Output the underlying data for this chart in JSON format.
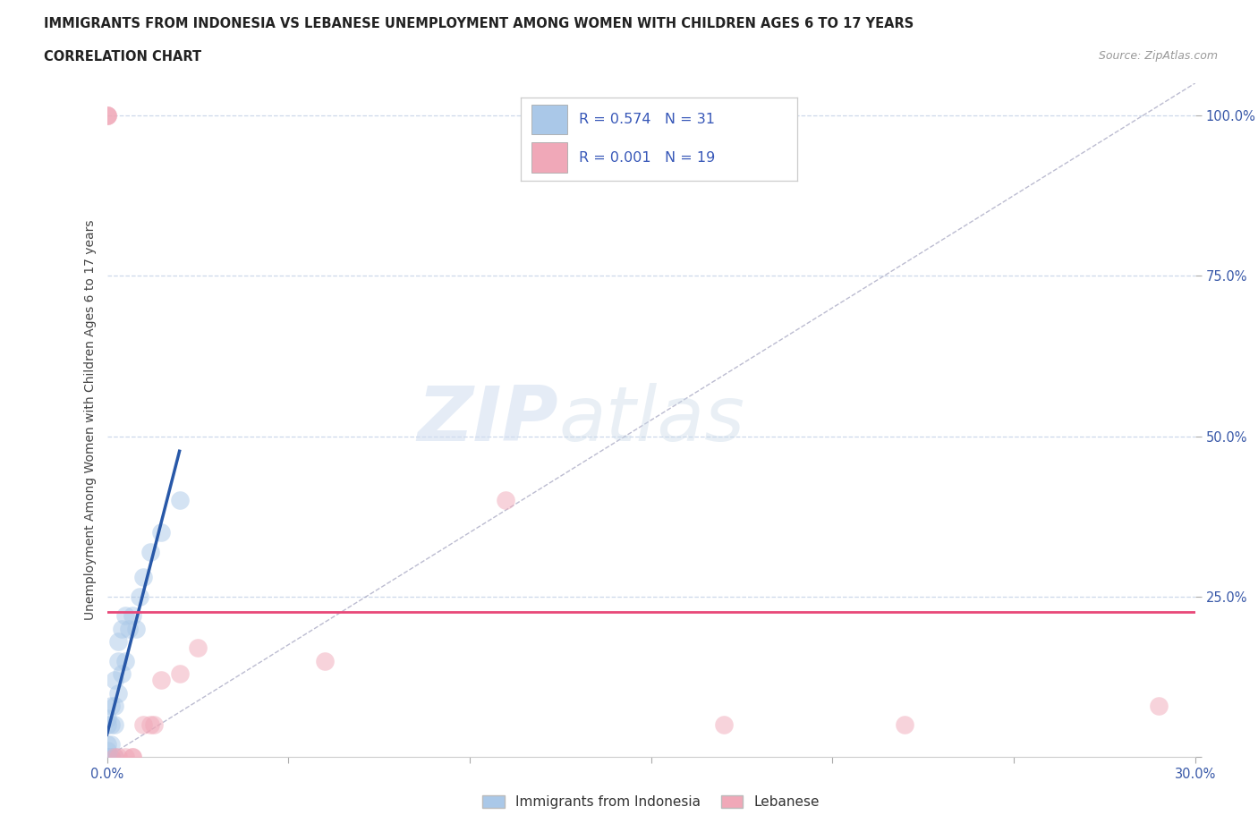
{
  "title": "IMMIGRANTS FROM INDONESIA VS LEBANESE UNEMPLOYMENT AMONG WOMEN WITH CHILDREN AGES 6 TO 17 YEARS",
  "subtitle": "CORRELATION CHART",
  "source": "Source: ZipAtlas.com",
  "ylabel": "Unemployment Among Women with Children Ages 6 to 17 years",
  "watermark": "ZIPatlas",
  "xlim": [
    0.0,
    0.3
  ],
  "ylim": [
    0.0,
    1.05
  ],
  "color_indonesia": "#aac8e8",
  "color_lebanese": "#f0a8b8",
  "color_line_indonesia": "#2858a8",
  "color_line_lebanese": "#e84878",
  "color_diag": "#9898b8",
  "color_hgrid": "#c8d4e8",
  "background": "#ffffff",
  "legend_color": "#3858b8",
  "indonesia_x": [
    0.0,
    0.0,
    0.0,
    0.0,
    0.0,
    0.0,
    0.0,
    0.001,
    0.001,
    0.001,
    0.001,
    0.001,
    0.002,
    0.002,
    0.002,
    0.002,
    0.003,
    0.003,
    0.003,
    0.004,
    0.004,
    0.005,
    0.005,
    0.006,
    0.007,
    0.008,
    0.009,
    0.01,
    0.012,
    0.015,
    0.02
  ],
  "indonesia_y": [
    0.0,
    0.0,
    0.0,
    0.01,
    0.02,
    0.05,
    0.06,
    0.0,
    0.0,
    0.02,
    0.05,
    0.08,
    0.0,
    0.05,
    0.08,
    0.12,
    0.1,
    0.15,
    0.18,
    0.13,
    0.2,
    0.15,
    0.22,
    0.2,
    0.22,
    0.2,
    0.25,
    0.28,
    0.32,
    0.35,
    0.4
  ],
  "lebanese_x": [
    0.0,
    0.0,
    0.0,
    0.002,
    0.003,
    0.005,
    0.007,
    0.007,
    0.01,
    0.012,
    0.013,
    0.015,
    0.02,
    0.025,
    0.06,
    0.11,
    0.17,
    0.22,
    0.29
  ],
  "lebanese_y": [
    1.0,
    1.0,
    1.0,
    0.0,
    0.0,
    0.0,
    0.0,
    0.0,
    0.05,
    0.05,
    0.05,
    0.12,
    0.13,
    0.17,
    0.15,
    0.4,
    0.05,
    0.05,
    0.08
  ],
  "leb_line_y": 0.27,
  "indo_line_x0": 0.0,
  "indo_line_y0": 0.0,
  "indo_line_x1": 0.02,
  "indo_line_y1": 0.37
}
